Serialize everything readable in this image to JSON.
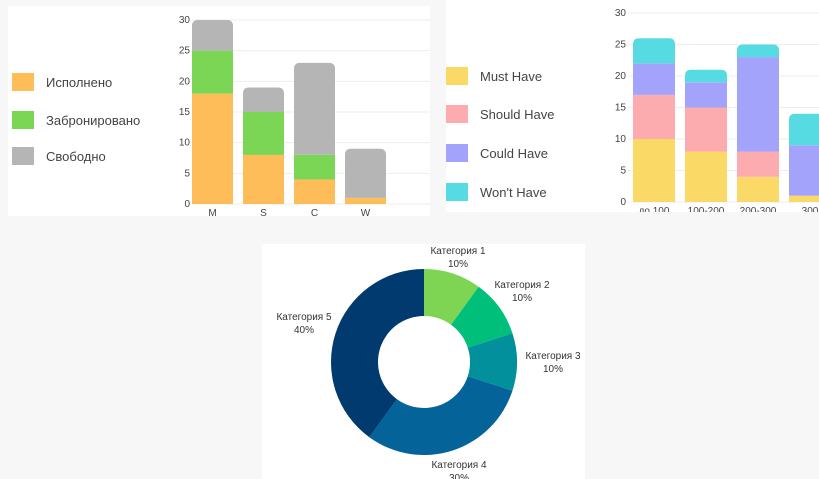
{
  "chart_data": [
    {
      "type": "bar",
      "stacked": true,
      "categories": [
        "M",
        "S",
        "C",
        "W"
      ],
      "series": [
        {
          "name": "Исполнено",
          "color": "#ffbd59",
          "values": [
            18,
            8,
            4,
            1
          ]
        },
        {
          "name": "Забронировано",
          "color": "#7bd655",
          "values": [
            7,
            7,
            4,
            0
          ]
        },
        {
          "name": "Свободно",
          "color": "#b5b5b5",
          "values": [
            5,
            4,
            15,
            8
          ]
        }
      ],
      "ylim": [
        0,
        30
      ],
      "yticks": [
        "0",
        "5",
        "10",
        "15",
        "20",
        "25",
        "30"
      ],
      "grid": true,
      "legend_position": "left"
    },
    {
      "type": "bar",
      "stacked": true,
      "categories": [
        "до 100",
        "100-200",
        "200-300",
        "300"
      ],
      "series": [
        {
          "name": "Must Have",
          "color": "#fbd967",
          "values": [
            10,
            8,
            4,
            1
          ]
        },
        {
          "name": "Should Have",
          "color": "#fcabae",
          "values": [
            7,
            7,
            4,
            0
          ]
        },
        {
          "name": "Could Have",
          "color": "#a3a3fb",
          "values": [
            5,
            4,
            15,
            8
          ]
        },
        {
          "name": "Won't Have",
          "color": "#57dbe3",
          "values": [
            4,
            2,
            2,
            5
          ]
        }
      ],
      "ylim": [
        0,
        30
      ],
      "yticks": [
        "0",
        "5",
        "10",
        "15",
        "20",
        "25",
        "30"
      ],
      "grid": true,
      "legend_position": "left"
    },
    {
      "type": "pie",
      "donut": true,
      "labels": [
        "Категория 1",
        "Категория 2",
        "Категория 3",
        "Категория 4",
        "Категория 5"
      ],
      "values": [
        10,
        10,
        10,
        30,
        40
      ],
      "value_labels": [
        "10%",
        "10%",
        "10%",
        "30%",
        "40%"
      ],
      "colors": [
        "#7dd553",
        "#00bf7b",
        "#02909c",
        "#04649a",
        "#003a6e"
      ]
    }
  ]
}
